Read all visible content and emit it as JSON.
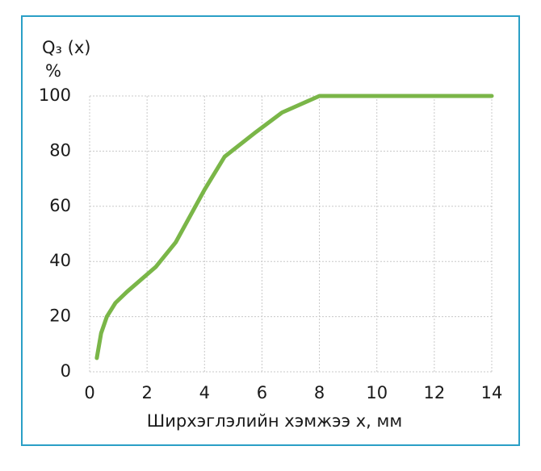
{
  "chart_data": {
    "type": "line",
    "ylabel": "Q₃ (x)",
    "yunit": "%",
    "xlabel": "Ширхэглэлийн хэмжээ x, мм",
    "x": [
      0.25,
      0.4,
      0.6,
      0.9,
      1.3,
      2.3,
      3,
      4,
      4.7,
      5.8,
      6.7,
      8,
      14
    ],
    "series": [
      {
        "color": "#7ab648",
        "values": [
          5,
          14,
          20,
          25,
          29,
          38,
          47,
          66,
          78,
          87,
          94,
          100,
          100
        ]
      }
    ],
    "xlim": [
      0,
      14
    ],
    "xticks": [
      0,
      2,
      4,
      6,
      8,
      10,
      12,
      14
    ],
    "ylim": [
      0,
      100
    ],
    "yticks": [
      0,
      20,
      40,
      60,
      80,
      100
    ],
    "grid": true,
    "frame_color": "#2a9fc6"
  }
}
